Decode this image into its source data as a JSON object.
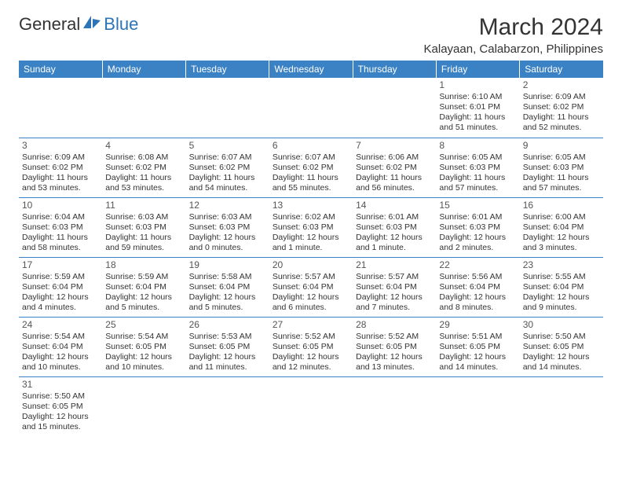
{
  "logo": {
    "general": "General",
    "blue": "Blue"
  },
  "title": "March 2024",
  "location": "Kalayaan, Calabarzon, Philippines",
  "colors": {
    "header_bg": "#3b82c4",
    "header_text": "#ffffff",
    "grid_line": "#3b82c4",
    "text": "#333333",
    "logo_blue": "#2d73b8",
    "background": "#ffffff"
  },
  "day_headers": [
    "Sunday",
    "Monday",
    "Tuesday",
    "Wednesday",
    "Thursday",
    "Friday",
    "Saturday"
  ],
  "weeks": [
    [
      null,
      null,
      null,
      null,
      null,
      {
        "day": "1",
        "sunrise": "6:10 AM",
        "sunset": "6:01 PM",
        "daylight": "11 hours and 51 minutes."
      },
      {
        "day": "2",
        "sunrise": "6:09 AM",
        "sunset": "6:02 PM",
        "daylight": "11 hours and 52 minutes."
      }
    ],
    [
      {
        "day": "3",
        "sunrise": "6:09 AM",
        "sunset": "6:02 PM",
        "daylight": "11 hours and 53 minutes."
      },
      {
        "day": "4",
        "sunrise": "6:08 AM",
        "sunset": "6:02 PM",
        "daylight": "11 hours and 53 minutes."
      },
      {
        "day": "5",
        "sunrise": "6:07 AM",
        "sunset": "6:02 PM",
        "daylight": "11 hours and 54 minutes."
      },
      {
        "day": "6",
        "sunrise": "6:07 AM",
        "sunset": "6:02 PM",
        "daylight": "11 hours and 55 minutes."
      },
      {
        "day": "7",
        "sunrise": "6:06 AM",
        "sunset": "6:02 PM",
        "daylight": "11 hours and 56 minutes."
      },
      {
        "day": "8",
        "sunrise": "6:05 AM",
        "sunset": "6:03 PM",
        "daylight": "11 hours and 57 minutes."
      },
      {
        "day": "9",
        "sunrise": "6:05 AM",
        "sunset": "6:03 PM",
        "daylight": "11 hours and 57 minutes."
      }
    ],
    [
      {
        "day": "10",
        "sunrise": "6:04 AM",
        "sunset": "6:03 PM",
        "daylight": "11 hours and 58 minutes."
      },
      {
        "day": "11",
        "sunrise": "6:03 AM",
        "sunset": "6:03 PM",
        "daylight": "11 hours and 59 minutes."
      },
      {
        "day": "12",
        "sunrise": "6:03 AM",
        "sunset": "6:03 PM",
        "daylight": "12 hours and 0 minutes."
      },
      {
        "day": "13",
        "sunrise": "6:02 AM",
        "sunset": "6:03 PM",
        "daylight": "12 hours and 1 minute."
      },
      {
        "day": "14",
        "sunrise": "6:01 AM",
        "sunset": "6:03 PM",
        "daylight": "12 hours and 1 minute."
      },
      {
        "day": "15",
        "sunrise": "6:01 AM",
        "sunset": "6:03 PM",
        "daylight": "12 hours and 2 minutes."
      },
      {
        "day": "16",
        "sunrise": "6:00 AM",
        "sunset": "6:04 PM",
        "daylight": "12 hours and 3 minutes."
      }
    ],
    [
      {
        "day": "17",
        "sunrise": "5:59 AM",
        "sunset": "6:04 PM",
        "daylight": "12 hours and 4 minutes."
      },
      {
        "day": "18",
        "sunrise": "5:59 AM",
        "sunset": "6:04 PM",
        "daylight": "12 hours and 5 minutes."
      },
      {
        "day": "19",
        "sunrise": "5:58 AM",
        "sunset": "6:04 PM",
        "daylight": "12 hours and 5 minutes."
      },
      {
        "day": "20",
        "sunrise": "5:57 AM",
        "sunset": "6:04 PM",
        "daylight": "12 hours and 6 minutes."
      },
      {
        "day": "21",
        "sunrise": "5:57 AM",
        "sunset": "6:04 PM",
        "daylight": "12 hours and 7 minutes."
      },
      {
        "day": "22",
        "sunrise": "5:56 AM",
        "sunset": "6:04 PM",
        "daylight": "12 hours and 8 minutes."
      },
      {
        "day": "23",
        "sunrise": "5:55 AM",
        "sunset": "6:04 PM",
        "daylight": "12 hours and 9 minutes."
      }
    ],
    [
      {
        "day": "24",
        "sunrise": "5:54 AM",
        "sunset": "6:04 PM",
        "daylight": "12 hours and 10 minutes."
      },
      {
        "day": "25",
        "sunrise": "5:54 AM",
        "sunset": "6:05 PM",
        "daylight": "12 hours and 10 minutes."
      },
      {
        "day": "26",
        "sunrise": "5:53 AM",
        "sunset": "6:05 PM",
        "daylight": "12 hours and 11 minutes."
      },
      {
        "day": "27",
        "sunrise": "5:52 AM",
        "sunset": "6:05 PM",
        "daylight": "12 hours and 12 minutes."
      },
      {
        "day": "28",
        "sunrise": "5:52 AM",
        "sunset": "6:05 PM",
        "daylight": "12 hours and 13 minutes."
      },
      {
        "day": "29",
        "sunrise": "5:51 AM",
        "sunset": "6:05 PM",
        "daylight": "12 hours and 14 minutes."
      },
      {
        "day": "30",
        "sunrise": "5:50 AM",
        "sunset": "6:05 PM",
        "daylight": "12 hours and 14 minutes."
      }
    ],
    [
      {
        "day": "31",
        "sunrise": "5:50 AM",
        "sunset": "6:05 PM",
        "daylight": "12 hours and 15 minutes."
      },
      null,
      null,
      null,
      null,
      null,
      null
    ]
  ],
  "labels": {
    "sunrise": "Sunrise: ",
    "sunset": "Sunset: ",
    "daylight": "Daylight: "
  }
}
